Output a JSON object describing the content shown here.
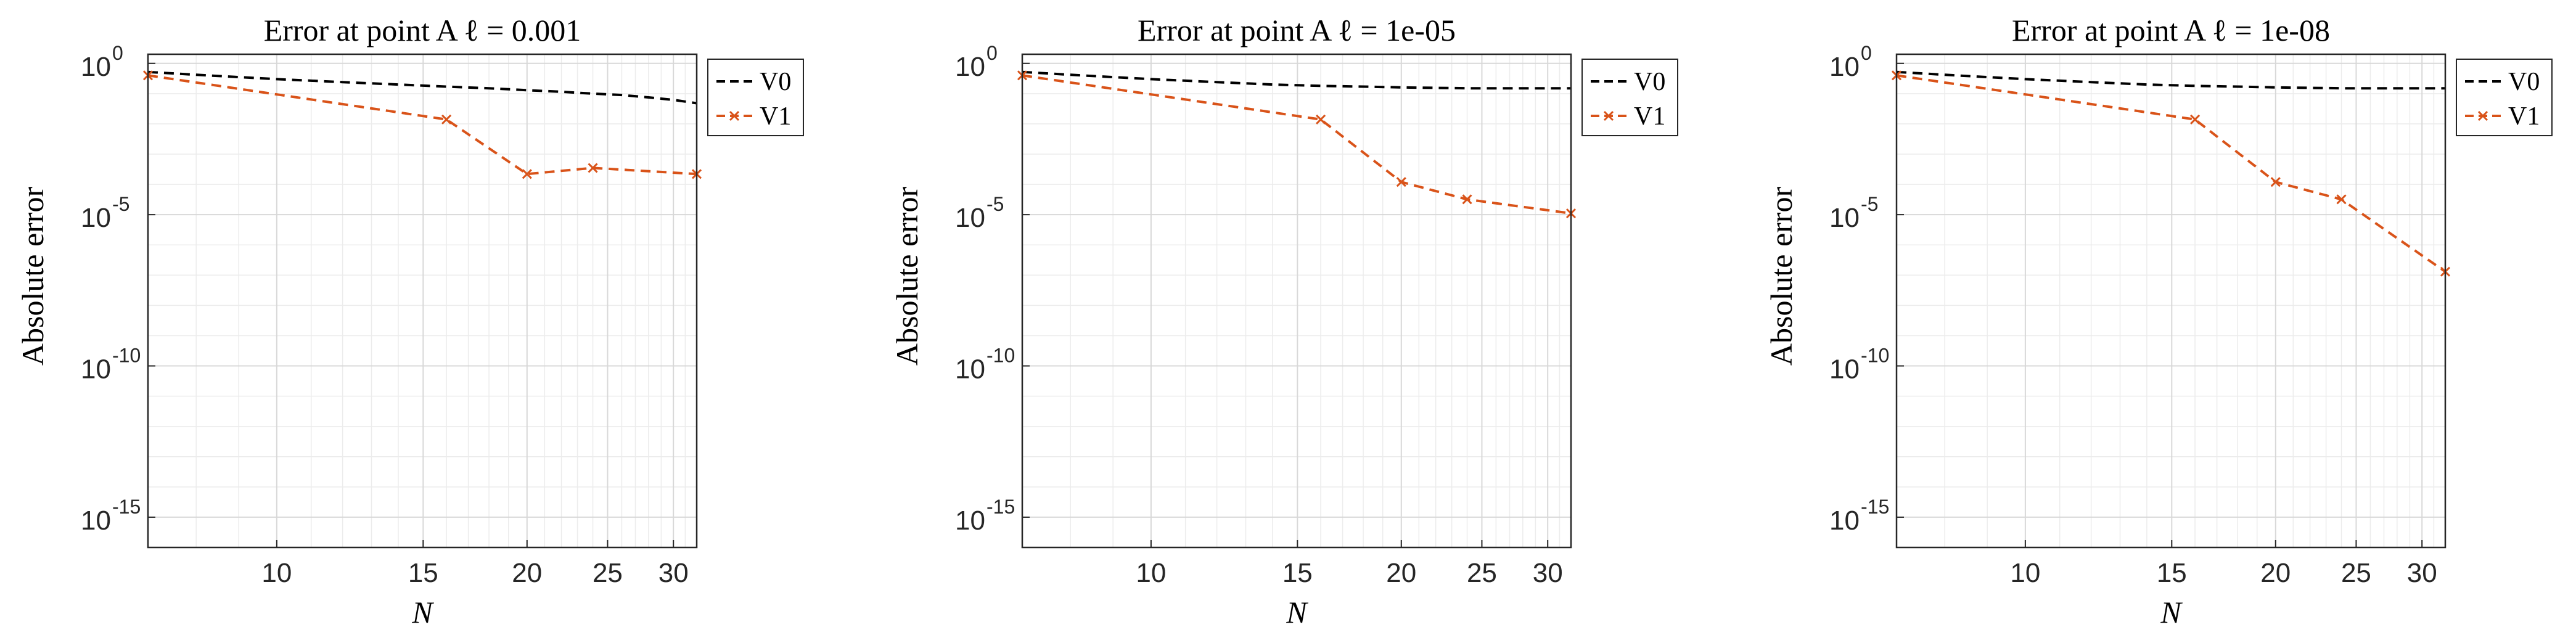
{
  "chart_data": [
    {
      "type": "line",
      "title": "Error at point A ℓ = 0.001",
      "xlabel": "N",
      "ylabel": "Absolute error",
      "xscale": "log",
      "yscale": "log",
      "xlim": [
        7,
        32
      ],
      "ylim": [
        1e-16,
        2
      ],
      "xticks": [
        10,
        15,
        20,
        25,
        30
      ],
      "xtick_labels": [
        "10",
        "15",
        "20",
        "25",
        "30"
      ],
      "yticks": [
        1e-15,
        1e-10,
        1e-05,
        1
      ],
      "ytick_labels": [
        {
          "base": "10",
          "exp": "-15"
        },
        {
          "base": "10",
          "exp": "-10"
        },
        {
          "base": "10",
          "exp": "-5"
        },
        {
          "base": "10",
          "exp": "0"
        }
      ],
      "grid": true,
      "legend": "outside-top-right",
      "series": [
        {
          "name": "V0",
          "color": "#000000",
          "style": "dashed",
          "marker": "none",
          "x": [
            7,
            8,
            10,
            12,
            14,
            16,
            18,
            20,
            22,
            24,
            26,
            28,
            30,
            32
          ],
          "y": [
            0.52,
            0.42,
            0.3,
            0.24,
            0.2,
            0.17,
            0.15,
            0.13,
            0.115,
            0.1,
            0.09,
            0.075,
            0.062,
            0.048
          ]
        },
        {
          "name": "V1",
          "color": "#d95319",
          "style": "dashed",
          "marker": "x",
          "x": [
            7,
            16,
            20,
            24,
            32
          ],
          "y": [
            0.4,
            0.014,
            0.00022,
            0.00035,
            0.00022
          ]
        }
      ]
    },
    {
      "type": "line",
      "title": "Error at point A ℓ = 1e-05",
      "xlabel": "N",
      "ylabel": "Absolute error",
      "xscale": "log",
      "yscale": "log",
      "xlim": [
        7,
        32
      ],
      "ylim": [
        1e-16,
        2
      ],
      "xticks": [
        10,
        15,
        20,
        25,
        30
      ],
      "xtick_labels": [
        "10",
        "15",
        "20",
        "25",
        "30"
      ],
      "yticks": [
        1e-15,
        1e-10,
        1e-05,
        1
      ],
      "ytick_labels": [
        {
          "base": "10",
          "exp": "-15"
        },
        {
          "base": "10",
          "exp": "-10"
        },
        {
          "base": "10",
          "exp": "-5"
        },
        {
          "base": "10",
          "exp": "0"
        }
      ],
      "grid": true,
      "legend": "outside-top-right",
      "series": [
        {
          "name": "V0",
          "color": "#000000",
          "style": "dashed",
          "marker": "none",
          "x": [
            7,
            8,
            10,
            12,
            14,
            16,
            18,
            20,
            22,
            24,
            26,
            28,
            30,
            32
          ],
          "y": [
            0.52,
            0.42,
            0.3,
            0.24,
            0.2,
            0.18,
            0.17,
            0.16,
            0.155,
            0.15,
            0.15,
            0.15,
            0.15,
            0.15
          ]
        },
        {
          "name": "V1",
          "color": "#d95319",
          "style": "dashed",
          "marker": "x",
          "x": [
            7,
            16,
            20,
            24,
            32
          ],
          "y": [
            0.4,
            0.014,
            0.00012,
            3.2e-05,
            1.1e-05
          ]
        }
      ]
    },
    {
      "type": "line",
      "title": "Error at point A ℓ = 1e-08",
      "xlabel": "N",
      "ylabel": "Absolute error",
      "xscale": "log",
      "yscale": "log",
      "xlim": [
        7,
        32
      ],
      "ylim": [
        1e-16,
        2
      ],
      "xticks": [
        10,
        15,
        20,
        25,
        30
      ],
      "xtick_labels": [
        "10",
        "15",
        "20",
        "25",
        "30"
      ],
      "yticks": [
        1e-15,
        1e-10,
        1e-05,
        1
      ],
      "ytick_labels": [
        {
          "base": "10",
          "exp": "-15"
        },
        {
          "base": "10",
          "exp": "-10"
        },
        {
          "base": "10",
          "exp": "-5"
        },
        {
          "base": "10",
          "exp": "0"
        }
      ],
      "grid": true,
      "legend": "outside-top-right",
      "series": [
        {
          "name": "V0",
          "color": "#000000",
          "style": "dashed",
          "marker": "none",
          "x": [
            7,
            8,
            10,
            12,
            14,
            16,
            18,
            20,
            22,
            24,
            26,
            28,
            30,
            32
          ],
          "y": [
            0.52,
            0.42,
            0.3,
            0.24,
            0.2,
            0.18,
            0.17,
            0.16,
            0.155,
            0.15,
            0.15,
            0.15,
            0.15,
            0.15
          ]
        },
        {
          "name": "V1",
          "color": "#d95319",
          "style": "dashed",
          "marker": "x",
          "x": [
            7,
            16,
            20,
            24,
            32
          ],
          "y": [
            0.4,
            0.014,
            0.00012,
            3.2e-05,
            1.3e-07
          ]
        }
      ]
    }
  ]
}
